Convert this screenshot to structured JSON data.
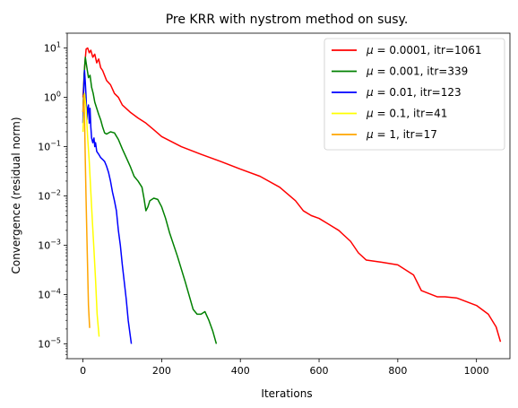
{
  "chart_data": {
    "type": "line",
    "title": "Pre KRR with nystrom method on susy.",
    "xlabel": "Iterations",
    "ylabel": "Convergence (residual norm)",
    "xlim": [
      -40,
      1085
    ],
    "ylim": [
      5e-06,
      20
    ],
    "yscale": "log",
    "xticks": [
      0,
      200,
      400,
      600,
      800,
      1000
    ],
    "yticks": [
      {
        "value": 1e-05,
        "base": "10",
        "exp": "−5"
      },
      {
        "value": 0.0001,
        "base": "10",
        "exp": "−4"
      },
      {
        "value": 0.001,
        "base": "10",
        "exp": "−3"
      },
      {
        "value": 0.01,
        "base": "10",
        "exp": "−2"
      },
      {
        "value": 0.1,
        "base": "10",
        "exp": "−1"
      },
      {
        "value": 1,
        "base": "10",
        "exp": "0"
      },
      {
        "value": 10,
        "base": "10",
        "exp": "1"
      }
    ],
    "grid": false,
    "legend_position": "top-right",
    "series": [
      {
        "name": "μ = 0.0001, itr=1061",
        "legend_mu": "μ",
        "legend_rest": " = 0.0001, itr=1061",
        "color": "#ff0000",
        "x": [
          0,
          5,
          8,
          12,
          16,
          20,
          25,
          30,
          35,
          40,
          45,
          50,
          60,
          70,
          80,
          90,
          100,
          120,
          140,
          160,
          180,
          200,
          250,
          300,
          350,
          400,
          450,
          500,
          540,
          560,
          580,
          600,
          620,
          650,
          680,
          700,
          720,
          760,
          800,
          840,
          860,
          900,
          920,
          950,
          1000,
          1030,
          1050,
          1061
        ],
        "y": [
          1,
          5,
          9.5,
          10,
          8,
          9,
          6.5,
          7.5,
          5,
          6,
          4,
          3.5,
          2.2,
          1.8,
          1.2,
          1,
          0.7,
          0.5,
          0.38,
          0.3,
          0.22,
          0.16,
          0.1,
          0.07,
          0.05,
          0.035,
          0.025,
          0.015,
          0.008,
          0.005,
          0.004,
          0.0035,
          0.0028,
          0.002,
          0.0012,
          0.0007,
          0.0005,
          0.00045,
          0.0004,
          0.00025,
          0.00012,
          9e-05,
          9e-05,
          8.5e-05,
          6e-05,
          4e-05,
          2.2e-05,
          1.1e-05
        ]
      },
      {
        "name": "μ = 0.001, itr=339",
        "legend_mu": "μ",
        "legend_rest": " = 0.001, itr=339",
        "color": "#008000",
        "x": [
          0,
          3,
          6,
          10,
          14,
          18,
          22,
          26,
          30,
          35,
          40,
          45,
          50,
          55,
          60,
          70,
          80,
          90,
          100,
          110,
          120,
          130,
          140,
          150,
          155,
          160,
          165,
          170,
          180,
          190,
          200,
          210,
          220,
          240,
          260,
          280,
          290,
          300,
          310,
          320,
          330,
          339
        ],
        "y": [
          0.5,
          3,
          6.5,
          4,
          2.5,
          2.8,
          1.6,
          1.2,
          0.8,
          0.6,
          0.45,
          0.35,
          0.25,
          0.19,
          0.18,
          0.2,
          0.19,
          0.14,
          0.09,
          0.06,
          0.04,
          0.025,
          0.02,
          0.015,
          0.009,
          0.005,
          0.006,
          0.008,
          0.009,
          0.0085,
          0.006,
          0.0035,
          0.0018,
          0.0006,
          0.00018,
          5e-05,
          4e-05,
          4e-05,
          4.5e-05,
          3e-05,
          1.8e-05,
          1e-05
        ]
      },
      {
        "name": "μ = 0.01, itr=123",
        "legend_mu": "μ",
        "legend_rest": " = 0.01, itr=123",
        "color": "#0000ff",
        "x": [
          0,
          2,
          4,
          6,
          8,
          10,
          12,
          14,
          16,
          18,
          20,
          22,
          25,
          28,
          30,
          32,
          35,
          40,
          45,
          50,
          55,
          60,
          65,
          70,
          75,
          80,
          85,
          90,
          95,
          100,
          105,
          110,
          115,
          120,
          123
        ],
        "y": [
          0.3,
          1.5,
          3.5,
          2,
          1,
          0.35,
          0.6,
          0.7,
          0.3,
          0.6,
          0.25,
          0.15,
          0.12,
          0.15,
          0.1,
          0.12,
          0.08,
          0.07,
          0.06,
          0.055,
          0.05,
          0.04,
          0.03,
          0.02,
          0.012,
          0.008,
          0.005,
          0.002,
          0.001,
          0.0004,
          0.00018,
          8e-05,
          3e-05,
          1.5e-05,
          1e-05
        ]
      },
      {
        "name": "μ = 0.1, itr=41",
        "legend_mu": "μ",
        "legend_rest": " = 0.1, itr=41",
        "color": "#ffff00",
        "x": [
          0,
          4,
          8,
          12,
          16,
          20,
          24,
          28,
          32,
          36,
          41
        ],
        "y": [
          0.2,
          1.2,
          0.6,
          0.15,
          0.05,
          0.012,
          0.003,
          0.0008,
          0.0002,
          4e-05,
          1.4e-05
        ]
      },
      {
        "name": "μ = 1, itr=17",
        "legend_mu": "μ",
        "legend_rest": " = 1, itr=17",
        "color": "#ffa500",
        "x": [
          0,
          2,
          4,
          6,
          8,
          10,
          12,
          14,
          17
        ],
        "y": [
          0.5,
          1.1,
          0.4,
          0.05,
          0.008,
          0.0015,
          0.0003,
          6e-05,
          2.1e-05
        ]
      }
    ]
  }
}
